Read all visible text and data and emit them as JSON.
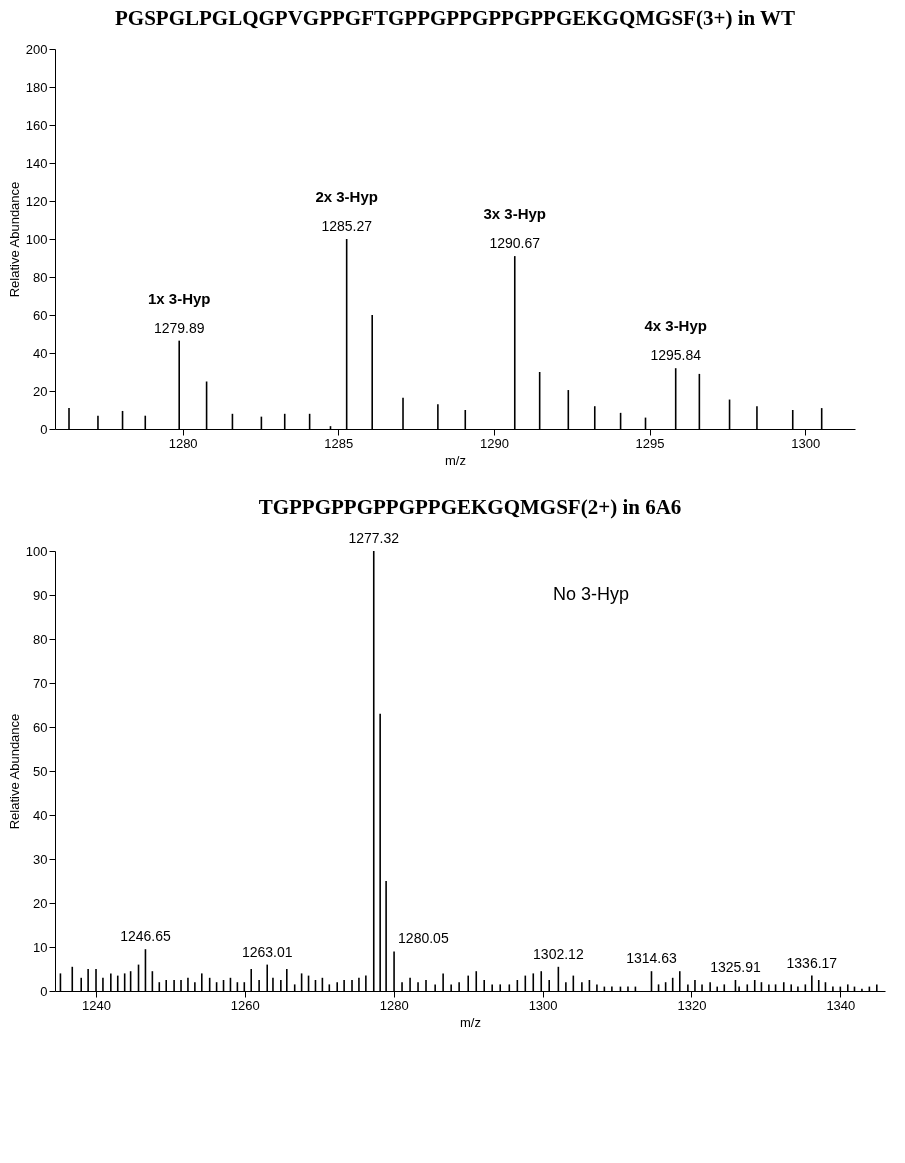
{
  "chart_data": [
    {
      "type": "bar",
      "title": "PGSPGLPGLQGPVGPPGFTGPPGPPGPPGPPGEKGQMGSF(3+)  in WT",
      "xlabel": "m/z",
      "ylabel": "Relative Abundance",
      "color": "#000000",
      "x": [
        1276.35,
        1277.28,
        1278.07,
        1278.8,
        1279.89,
        1280.77,
        1281.6,
        1282.53,
        1283.28,
        1284.08,
        1284.75,
        1285.27,
        1286.09,
        1287.08,
        1288.2,
        1289.08,
        1290.67,
        1291.47,
        1292.39,
        1293.24,
        1294.07,
        1294.87,
        1295.84,
        1296.6,
        1297.57,
        1298.45,
        1299.6,
        1300.53
      ],
      "values": [
        11,
        7,
        9.5,
        7,
        46.5,
        25,
        8,
        6.5,
        8,
        8,
        1.5,
        100,
        60,
        16.5,
        13,
        10,
        91,
        30,
        20.5,
        12,
        8.5,
        6,
        32,
        29,
        15.5,
        12,
        10,
        11
      ],
      "xlim": [
        1275.9,
        1301.6
      ],
      "xticks": [
        1280,
        1285,
        1290,
        1295,
        1300
      ],
      "ylim": [
        0,
        200
      ],
      "yticks": [
        0,
        20,
        40,
        60,
        80,
        100,
        120,
        140,
        160,
        180,
        200
      ],
      "annotations": [
        {
          "text": "1279.89",
          "x": 1279.89,
          "y": 46.5
        },
        {
          "text": "1x 3-Hyp",
          "x": 1279.89,
          "y": 46.5
        },
        {
          "text": "1285.27",
          "x": 1285.27,
          "y": 100
        },
        {
          "text": "2x 3-Hyp",
          "x": 1285.27,
          "y": 100
        },
        {
          "text": "1290.67",
          "x": 1290.67,
          "y": 91
        },
        {
          "text": "3x 3-Hyp",
          "x": 1290.67,
          "y": 91
        },
        {
          "text": "1295.84",
          "x": 1295.84,
          "y": 32
        },
        {
          "text": "4x 3-Hyp",
          "x": 1295.84,
          "y": 32
        }
      ]
    },
    {
      "type": "bar",
      "title": "TGPPGPPGPPGPPGEKGQMGSF(2+) in 6A6",
      "xlabel": "m/z",
      "ylabel": "Relative Abundance",
      "color": "#000000",
      "x": [
        1235.23,
        1236.82,
        1238.02,
        1238.95,
        1240.01,
        1240.94,
        1242.0,
        1242.93,
        1243.86,
        1244.66,
        1245.72,
        1246.65,
        1247.58,
        1248.51,
        1249.44,
        1250.5,
        1251.43,
        1252.36,
        1253.29,
        1254.22,
        1255.28,
        1256.21,
        1257.14,
        1258.07,
        1259.0,
        1259.93,
        1260.86,
        1261.92,
        1263.01,
        1263.78,
        1264.84,
        1265.64,
        1266.7,
        1267.63,
        1268.56,
        1269.49,
        1270.42,
        1271.35,
        1272.41,
        1273.34,
        1274.4,
        1275.33,
        1276.26,
        1277.32,
        1278.18,
        1278.98,
        1280.05,
        1281.12,
        1282.2,
        1283.27,
        1284.34,
        1285.57,
        1286.64,
        1287.72,
        1288.79,
        1290.01,
        1291.09,
        1292.16,
        1293.23,
        1294.31,
        1295.53,
        1296.61,
        1297.68,
        1298.75,
        1299.82,
        1300.89,
        1302.12,
        1303.13,
        1304.13,
        1305.28,
        1306.29,
        1307.3,
        1308.3,
        1309.31,
        1310.46,
        1311.47,
        1312.47,
        1314.63,
        1315.58,
        1316.53,
        1317.48,
        1318.43,
        1319.52,
        1320.47,
        1321.42,
        1322.51,
        1323.46,
        1324.41,
        1325.91,
        1326.4,
        1327.5,
        1328.5,
        1329.4,
        1330.4,
        1331.3,
        1332.4,
        1333.4,
        1334.3,
        1335.3,
        1336.17,
        1337.1,
        1338.0,
        1339.0,
        1340.0,
        1341.0,
        1341.9,
        1342.9,
        1343.9,
        1344.9
      ],
      "values": [
        4,
        5.5,
        3,
        5,
        5,
        3,
        4,
        3.5,
        4,
        4.5,
        6,
        9.5,
        4.5,
        2,
        2.5,
        2.5,
        2.5,
        3,
        2,
        4,
        3,
        2,
        2.5,
        3,
        2,
        2,
        5,
        2.5,
        6,
        3,
        2.5,
        5,
        1.5,
        4,
        3.5,
        2.5,
        3,
        1.5,
        2,
        2.5,
        2.5,
        3,
        3.5,
        100,
        63,
        25,
        9,
        2,
        3,
        2,
        2.5,
        1.5,
        4,
        1.5,
        2,
        3.5,
        4.5,
        2.5,
        1.5,
        1.5,
        1.5,
        2.5,
        3.5,
        4,
        4.5,
        2.5,
        5.5,
        2,
        3.5,
        2,
        2.5,
        1.5,
        1,
        1,
        1,
        1,
        1,
        4.5,
        1.5,
        2,
        3,
        4.5,
        1.5,
        2.5,
        1.5,
        2,
        1,
        1.5,
        2.5,
        1,
        1.5,
        2.5,
        2,
        1.5,
        1.5,
        2,
        1.5,
        1,
        1.5,
        3.5,
        2.5,
        2,
        1,
        1,
        1.5,
        1,
        0.5,
        1,
        1.5
      ],
      "xlim": [
        1234.5,
        1346
      ],
      "xticks": [
        1240,
        1260,
        1280,
        1300,
        1320,
        1340
      ],
      "ylim": [
        0,
        100
      ],
      "yticks": [
        0,
        10,
        20,
        30,
        40,
        50,
        60,
        70,
        80,
        90,
        100
      ],
      "annotations": [
        {
          "text": "1277.32",
          "x": 1277.32,
          "y": 100
        },
        {
          "text": "1246.65",
          "x": 1246.65,
          "y": 9.5
        },
        {
          "text": "1263.01",
          "x": 1263.01,
          "y": 6
        },
        {
          "text": "1280.05",
          "x": 1280.05,
          "y": 9
        },
        {
          "text": "1302.12",
          "x": 1302.12,
          "y": 5.5
        },
        {
          "text": "1314.63",
          "x": 1314.63,
          "y": 4.5
        },
        {
          "text": "1325.91",
          "x": 1325.91,
          "y": 2.5
        },
        {
          "text": "1336.17",
          "x": 1336.17,
          "y": 3.5
        },
        "No 3-Hyp"
      ]
    }
  ]
}
